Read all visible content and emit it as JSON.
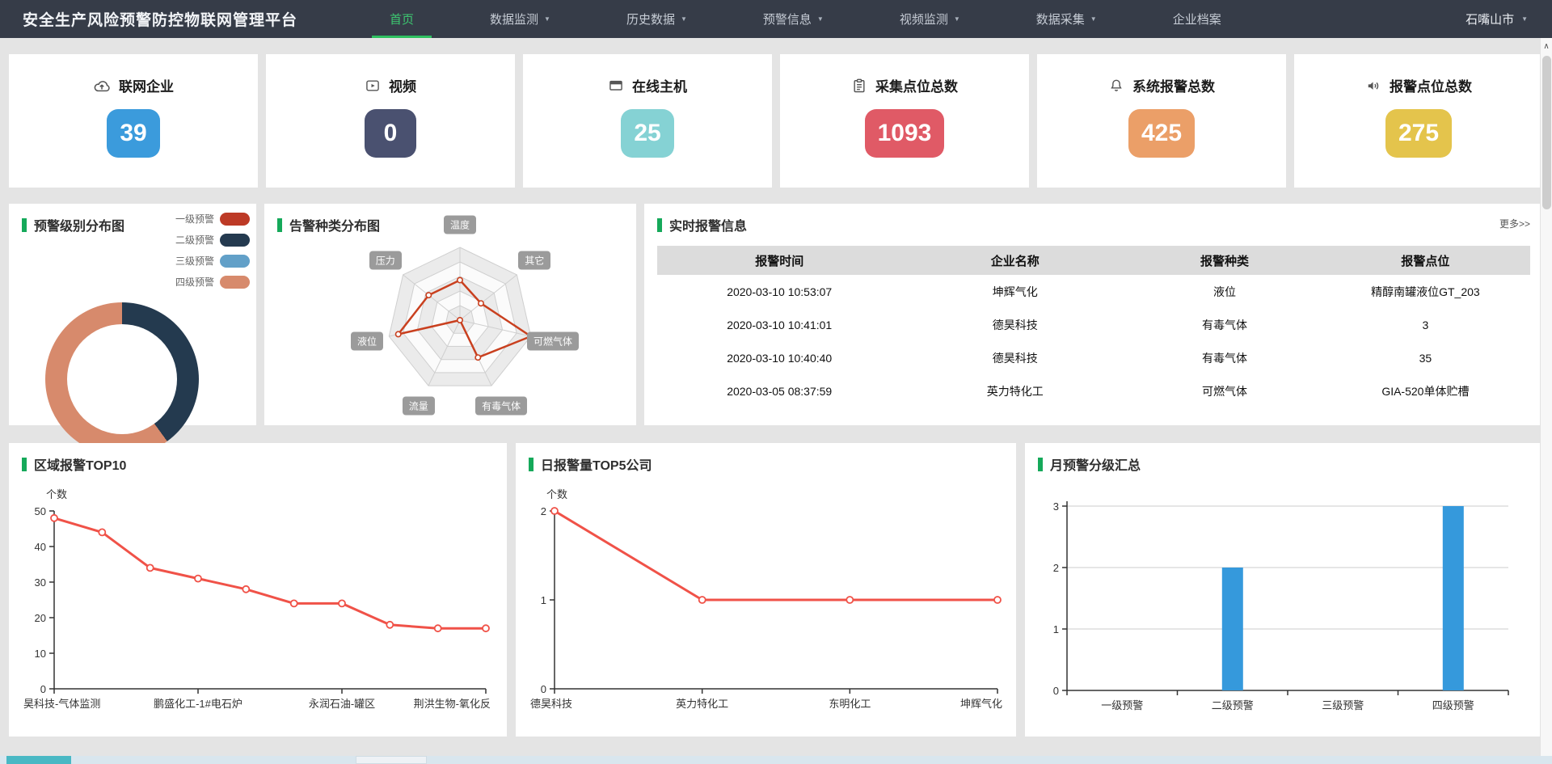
{
  "navbar": {
    "title": "安全生产风险预警防控物联网管理平台",
    "items": [
      {
        "label": "首页",
        "active": true,
        "dropdown": false
      },
      {
        "label": "数据监测",
        "active": false,
        "dropdown": true
      },
      {
        "label": "历史数据",
        "active": false,
        "dropdown": true
      },
      {
        "label": "预警信息",
        "active": false,
        "dropdown": true
      },
      {
        "label": "视频监测",
        "active": false,
        "dropdown": true
      },
      {
        "label": "数据采集",
        "active": false,
        "dropdown": true
      },
      {
        "label": "企业档案",
        "active": false,
        "dropdown": false
      }
    ],
    "region": "石嘴山市"
  },
  "stats": [
    {
      "label": "联网企业",
      "value": "39",
      "color": "#3b9bdc",
      "icon": "cloud-upload-icon"
    },
    {
      "label": "视频",
      "value": "0",
      "color": "#4a5170",
      "icon": "video-icon"
    },
    {
      "label": "在线主机",
      "value": "25",
      "color": "#85d2d4",
      "icon": "monitor-icon"
    },
    {
      "label": "采集点位总数",
      "value": "1093",
      "color": "#e05a66",
      "icon": "clipboard-icon"
    },
    {
      "label": "系统报警总数",
      "value": "425",
      "color": "#eb9f68",
      "icon": "bell-icon"
    },
    {
      "label": "报警点位总数",
      "value": "275",
      "color": "#e4c44c",
      "icon": "speaker-icon"
    }
  ],
  "alarm_table": {
    "title": "实时报警信息",
    "more_label": "更多>>",
    "columns": [
      "报警时间",
      "企业名称",
      "报警种类",
      "报警点位"
    ],
    "rows": [
      [
        "2020-03-10 10:53:07",
        "坤辉气化",
        "液位",
        "精醇南罐液位GT_203"
      ],
      [
        "2020-03-10 10:41:01",
        "德昊科技",
        "有毒气体",
        "3"
      ],
      [
        "2020-03-10 10:40:40",
        "德昊科技",
        "有毒气体",
        "35"
      ],
      [
        "2020-03-05 08:37:59",
        "英力特化工",
        "可燃气体",
        "GIA-520单体贮槽"
      ]
    ]
  },
  "chart_data": [
    {
      "type": "pie",
      "title": "预警级别分布图",
      "labels": [
        "一级预警",
        "二级预警",
        "三级预警",
        "四级预警"
      ],
      "values": [
        0,
        2,
        0,
        3
      ],
      "colors": [
        "#bd3a26",
        "#243a4f",
        "#62a0c8",
        "#d78a6c"
      ],
      "donut": true,
      "inner_radius_ratio": 0.72,
      "legend_position": "top-right"
    },
    {
      "type": "radar",
      "title": "告警种类分布图",
      "axes": [
        "温度",
        "其它",
        "可燃气体",
        "有毒气体",
        "流量",
        "液位",
        "压力"
      ],
      "values": [
        55,
        37,
        100,
        57,
        0,
        87,
        55
      ],
      "max": 100,
      "rings": 5,
      "color": "#c9401f"
    },
    {
      "type": "line",
      "title": "区域报警TOP10",
      "ylabel": "个数",
      "categories": [
        "昊科技-气体监测",
        "",
        "",
        "鹏盛化工-1#电石炉",
        "",
        "",
        "永润石油-罐区",
        "",
        "",
        "荆洪生物-氧化反"
      ],
      "values": [
        48,
        44,
        34,
        31,
        28,
        24,
        24,
        18,
        17,
        17
      ],
      "ylim": [
        0,
        50
      ],
      "yticks": [
        0,
        10,
        20,
        30,
        40,
        50
      ],
      "color": "#f05248",
      "grid": false
    },
    {
      "type": "line",
      "title": "日报警量TOP5公司",
      "ylabel": "个数",
      "categories": [
        "德昊科技",
        "英力特化工",
        "东明化工",
        "坤辉气化"
      ],
      "values": [
        2,
        1,
        1,
        1
      ],
      "ylim": [
        0,
        2
      ],
      "yticks": [
        0,
        1,
        2
      ],
      "color": "#f05248",
      "grid": false
    },
    {
      "type": "bar",
      "title": "月预警分级汇总",
      "categories": [
        "一级预警",
        "二级预警",
        "三级预警",
        "四级预警"
      ],
      "values": [
        0,
        2,
        0,
        3
      ],
      "ylim": [
        0,
        3
      ],
      "yticks": [
        0,
        1,
        2,
        3
      ],
      "color": "#3599dc",
      "grid": true
    }
  ]
}
